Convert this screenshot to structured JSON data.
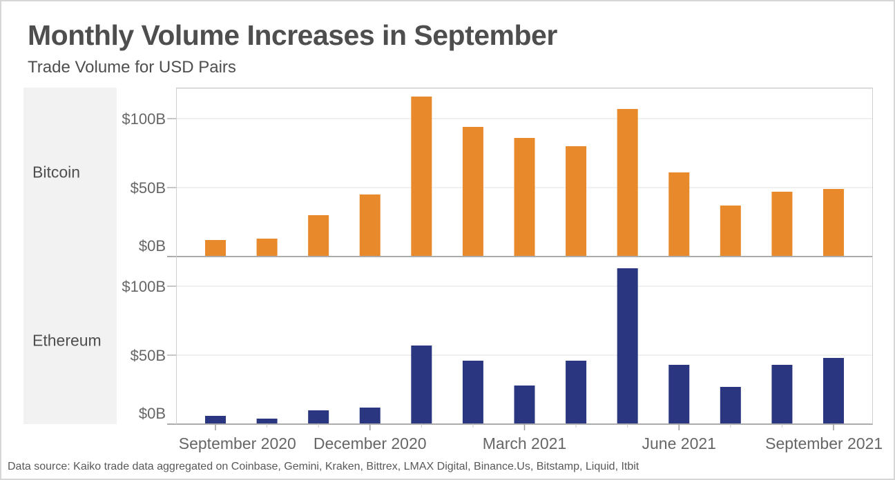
{
  "header": {
    "title": "Monthly Volume Increases in September",
    "subtitle": "Trade Volume for USD Pairs"
  },
  "chart_data": {
    "type": "bar",
    "title": "Monthly Volume Increases in September",
    "subtitle": "Trade Volume for USD Pairs",
    "layout": "two stacked panels sharing one x axis, one panel per series, horizontal gridlines on",
    "categories": [
      "September 2020",
      "October 2020",
      "November 2020",
      "December 2020",
      "January 2021",
      "February 2021",
      "March 2021",
      "April 2021",
      "May 2021",
      "June 2021",
      "July 2021",
      "August 2021",
      "September 2021"
    ],
    "x_axis": {
      "tick_label_positions": [
        0,
        3,
        6,
        9,
        12
      ],
      "tick_labels": [
        "September 2020",
        "December 2020",
        "March 2021",
        "June 2021",
        "September 2021"
      ]
    },
    "y_axis": {
      "tick_values": [
        0,
        50,
        100
      ],
      "tick_labels": [
        "$0B",
        "$50B",
        "$100B"
      ],
      "units": "USD billions",
      "ylim": [
        0,
        122
      ],
      "grid": "horizontal"
    },
    "series": [
      {
        "name": "Bitcoin",
        "color": "#E8892B",
        "values": [
          12,
          13,
          30,
          45,
          116,
          94,
          86,
          80,
          107,
          61,
          37,
          47,
          49
        ]
      },
      {
        "name": "Ethereum",
        "color": "#2A3780",
        "values": [
          6,
          4,
          10,
          12,
          57,
          46,
          28,
          46,
          113,
          43,
          27,
          43,
          48
        ]
      }
    ]
  },
  "footer": {
    "text": "Data source: Kaiko trade data aggregated on Coinbase, Gemini, Kraken, Bittrex, LMAX Digital, Binance.Us, Bitstamp, Liquid, Itbit"
  },
  "colors": {
    "bitcoin_bar": "#E8892B",
    "ethereum_bar": "#2A3780",
    "row_label_band": "#F2F2F2",
    "heading_text": "#4E4E4E",
    "axis_text": "#666666",
    "gridline": "#ECECEC",
    "baseline": "#ABABAB",
    "frame": "#CFCFCF",
    "y_tick": "#B3B3B3",
    "x_tick_major": "#9A9A9A",
    "x_tick_minor": "#C9C9C9"
  }
}
